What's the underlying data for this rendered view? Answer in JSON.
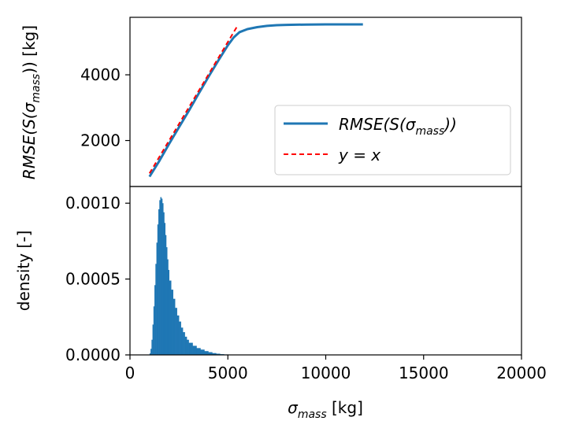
{
  "chart_data": [
    {
      "type": "line",
      "xlim": [
        0,
        20000
      ],
      "ylim": [
        600,
        5750
      ],
      "yticks": [
        2000,
        4000
      ],
      "ylabel": {
        "prefix": "RMSE(S(σ",
        "sub": "mass",
        "suffix": ")) [kg]"
      },
      "series": [
        {
          "name": "RMSE(S(σmass))",
          "legend": {
            "prefix": "RMSE(S(σ",
            "sub": "mass",
            "suffix": "))"
          },
          "color": "#1f77b4",
          "style": "solid",
          "x": [
            1000,
            1500,
            2000,
            2500,
            3000,
            3500,
            4000,
            4500,
            5000,
            5300,
            5600,
            6000,
            6500,
            7000,
            7500,
            8000,
            9000,
            10000,
            11000,
            11900
          ],
          "y": [
            900,
            1380,
            1900,
            2400,
            2900,
            3420,
            3930,
            4420,
            4900,
            5140,
            5300,
            5390,
            5450,
            5490,
            5510,
            5520,
            5530,
            5535,
            5535,
            5535
          ]
        },
        {
          "name": "y = x",
          "legend": {
            "prefix": "y = x"
          },
          "color": "#ff0000",
          "style": "dashed",
          "x": [
            1000,
            5500
          ],
          "y": [
            1000,
            5500
          ]
        }
      ],
      "legend_position": "lower-right",
      "grid": false
    },
    {
      "type": "histogram",
      "xlim": [
        0,
        20000
      ],
      "ylim": [
        0,
        0.00111
      ],
      "xticks": [
        0,
        5000,
        10000,
        15000,
        20000
      ],
      "yticks": [
        0.0,
        0.0005,
        0.001
      ],
      "ytick_labels": [
        "0.0000",
        "0.0005",
        "0.0010"
      ],
      "xlabel": {
        "prefix": "σ",
        "sub": "mass",
        "suffix": " [kg]"
      },
      "ylabel": "density [-]",
      "color": "#1f77b4",
      "bins_x": [
        1000,
        1050,
        1100,
        1150,
        1200,
        1250,
        1300,
        1350,
        1400,
        1450,
        1500,
        1550,
        1600,
        1650,
        1700,
        1750,
        1800,
        1850,
        1900,
        1950,
        2000,
        2100,
        2200,
        2300,
        2400,
        2500,
        2600,
        2700,
        2800,
        2900,
        3000,
        3200,
        3400,
        3600,
        3800,
        4000,
        4200,
        4400,
        4600,
        4800,
        5000
      ],
      "density": [
        1e-05,
        4e-05,
        0.0001,
        0.0002,
        0.00032,
        0.00046,
        0.0006,
        0.00074,
        0.00086,
        0.00096,
        0.00102,
        0.00104,
        0.00103,
        0.001,
        0.00094,
        0.00087,
        0.00079,
        0.00071,
        0.00063,
        0.00056,
        0.00049,
        0.00043,
        0.00037,
        0.00031,
        0.00026,
        0.00022,
        0.00018,
        0.00015,
        0.00012,
        0.0001,
        8e-05,
        6e-05,
        4.5e-05,
        3.5e-05,
        2.5e-05,
        1.8e-05,
        1.2e-05,
        8e-06,
        5e-06,
        3e-06,
        2e-06
      ]
    }
  ]
}
